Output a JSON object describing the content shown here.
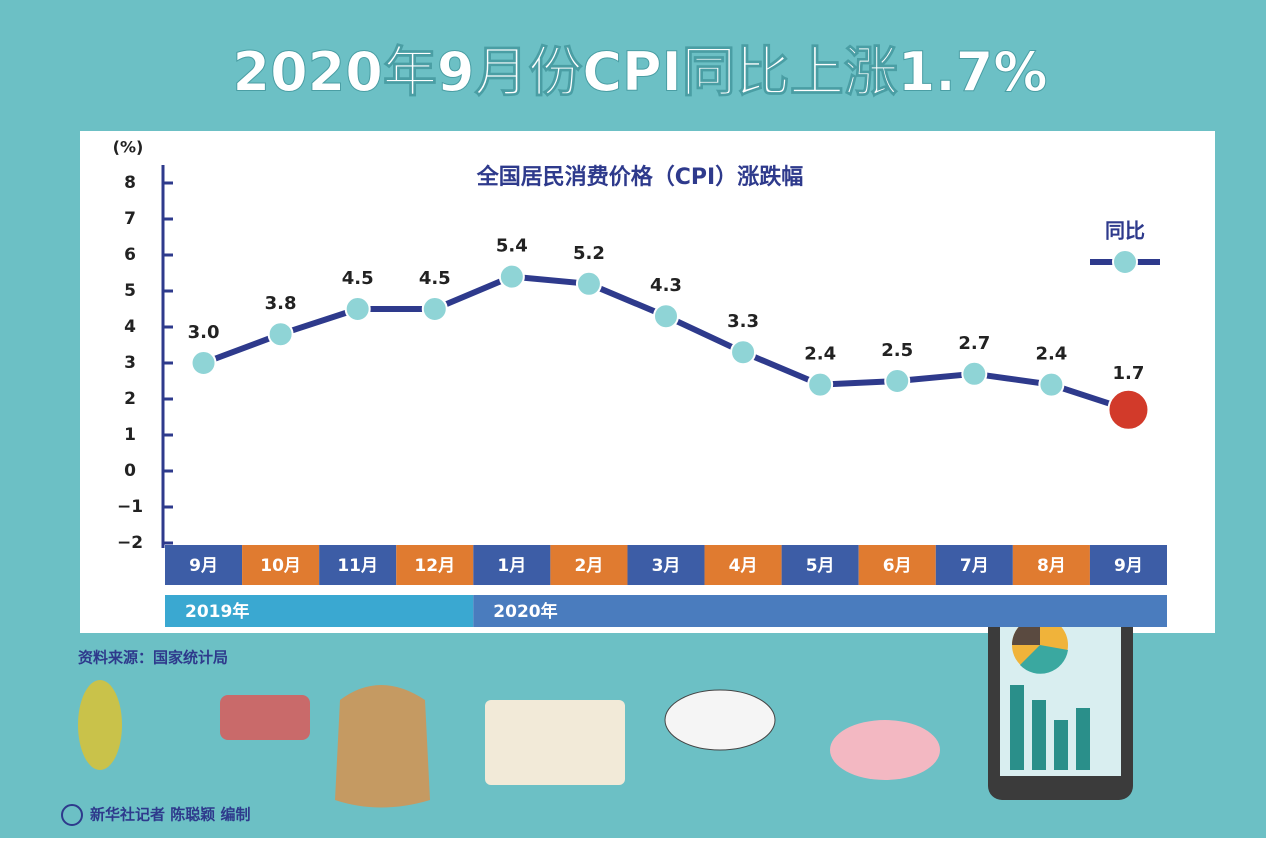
{
  "header": {
    "title": "2020年9月份CPI同比上涨1.7%"
  },
  "chart_data": {
    "type": "line",
    "title": "全国居民消费价格（CPI）涨跌幅",
    "y_label": "(%)",
    "categories": [
      "9月",
      "10月",
      "11月",
      "12月",
      "1月",
      "2月",
      "3月",
      "4月",
      "5月",
      "6月",
      "7月",
      "8月",
      "9月"
    ],
    "category_colors": [
      "#3d5da6",
      "#e07b30"
    ],
    "groups": [
      {
        "name": "2019年",
        "count": 4,
        "color": "#3aa8d1"
      },
      {
        "name": "2020年",
        "count": 9,
        "color": "#4a7cbe"
      }
    ],
    "series": [
      {
        "name": "同比",
        "color": "#2e3a8c",
        "marker_color": "#8fd4d6",
        "highlight_color": "#d23a2a",
        "values": [
          3.0,
          3.8,
          4.5,
          4.5,
          5.4,
          5.2,
          4.3,
          3.3,
          2.4,
          2.5,
          2.7,
          2.4,
          1.7
        ],
        "value_labels": [
          "3.0",
          "3.8",
          "4.5",
          "4.5",
          "5.4",
          "5.2",
          "4.3",
          "3.3",
          "2.4",
          "2.5",
          "2.7",
          "2.4",
          "1.7"
        ]
      }
    ],
    "ylim": [
      -2,
      8
    ],
    "yticks": [
      {
        "value": -2,
        "label": "−2"
      },
      {
        "value": -1,
        "label": "−1"
      },
      0,
      1,
      2,
      3,
      4,
      5,
      6,
      7,
      8
    ],
    "legend": "upper right"
  },
  "footer": {
    "source": "资料来源：国家统计局",
    "credit": "新华社记者 陈聪颖 编制"
  }
}
